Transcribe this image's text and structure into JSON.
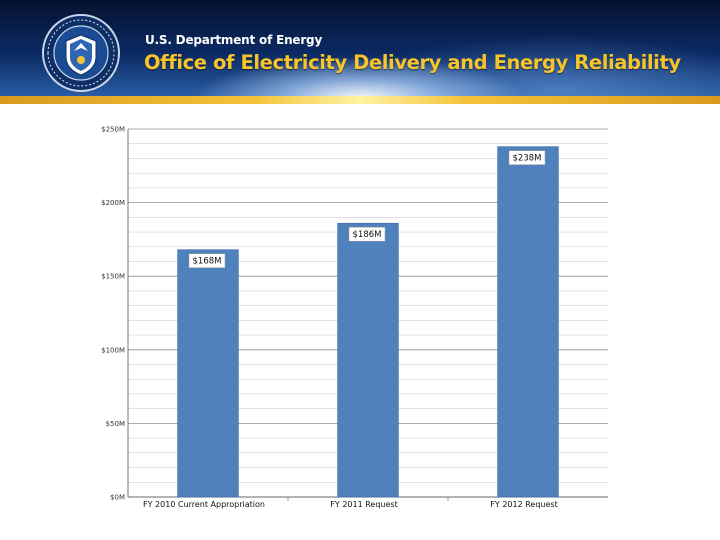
{
  "header": {
    "department": "U.S. Department of Energy",
    "office": "Office of Electricity Delivery and Energy Reliability",
    "colors": {
      "navy": "#0b2a63",
      "gold": "#f7c52a"
    }
  },
  "chart_data": {
    "type": "bar",
    "title": "",
    "xlabel": "",
    "ylabel": "",
    "categories": [
      "FY 2010 Current Appropriation",
      "FY 2011 Request",
      "FY 2012 Request"
    ],
    "values": [
      168,
      186,
      238
    ],
    "data_labels": [
      "$168M",
      "$186M",
      "$238M"
    ],
    "ylim": [
      0,
      250
    ],
    "yticks": [
      0,
      50,
      100,
      150,
      200,
      250
    ],
    "ytick_labels": [
      "$0M",
      "$50M",
      "$100M",
      "$150M",
      "$200M",
      "$250M"
    ],
    "grid": true,
    "bar_color": "#4f81bd"
  }
}
